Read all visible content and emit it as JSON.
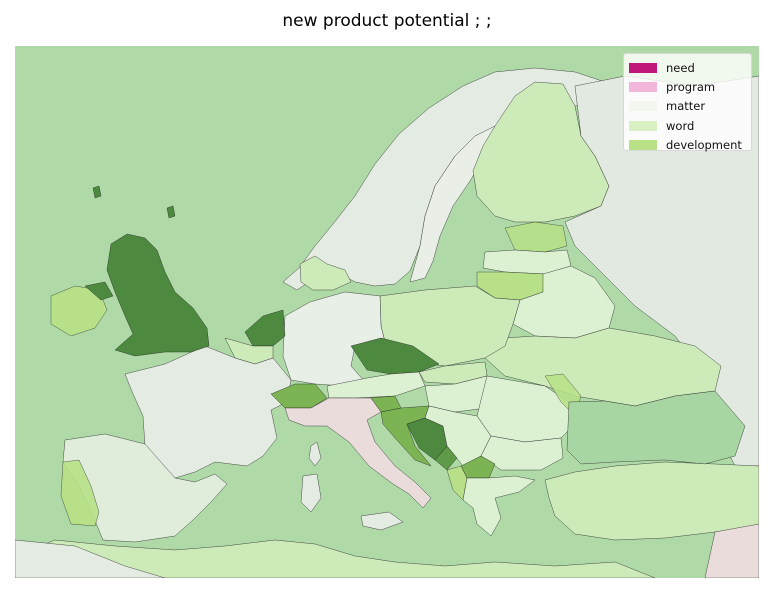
{
  "title": "new product potential ; ;",
  "legend": {
    "items": [
      {
        "label": "need",
        "color": "#c0187a"
      },
      {
        "label": "program",
        "color": "#f1b6da"
      },
      {
        "label": "matter",
        "color": "#f3f6ee"
      },
      {
        "label": "word",
        "color": "#d9f0c4"
      },
      {
        "label": "development",
        "color": "#b8e186"
      }
    ]
  },
  "colors": {
    "sea": "#afdaa8",
    "land_neutral": "#e4ebe2",
    "italy": "#e9dcdb",
    "dark_green": "#4d8a3f",
    "mid_green": "#7cb453",
    "light_green": "#cdeab9",
    "pale_green": "#dcf1d2",
    "sea_green": "#a7d6a3"
  }
}
